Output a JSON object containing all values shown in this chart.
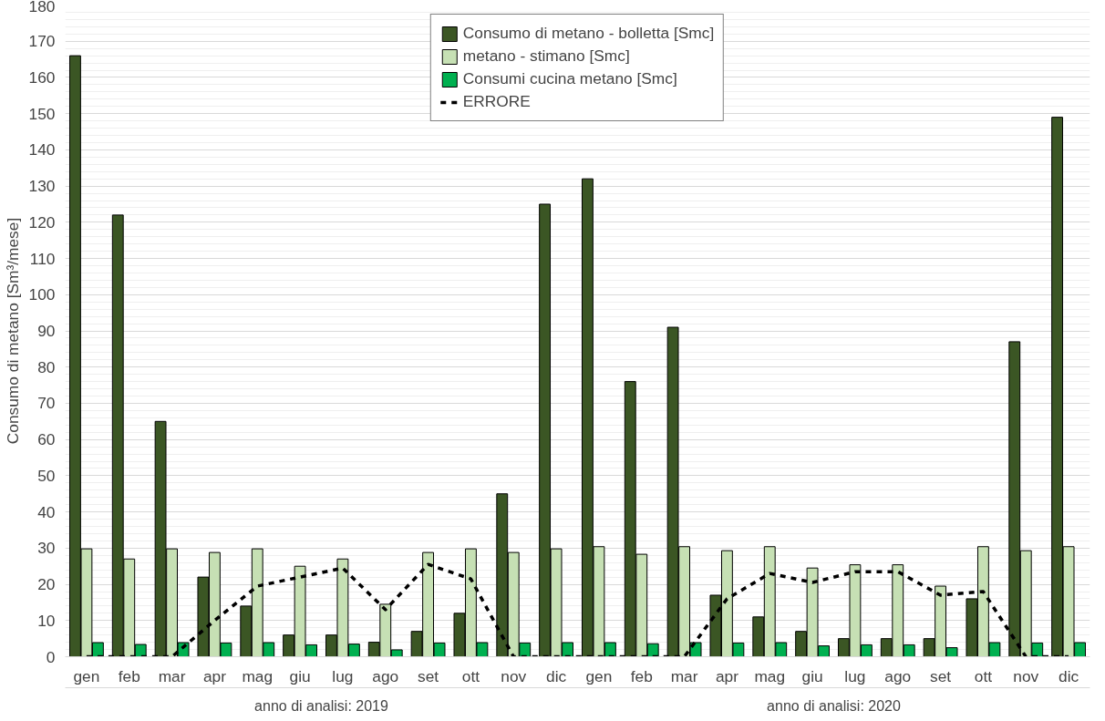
{
  "chart_data": {
    "type": "bar",
    "ylabel": "Consumo di metano [Sm³/mese]",
    "categories": [
      "gen",
      "feb",
      "mar",
      "apr",
      "mag",
      "giu",
      "lug",
      "ago",
      "set",
      "ott",
      "nov",
      "dic",
      "gen",
      "feb",
      "mar",
      "apr",
      "mag",
      "giu",
      "lug",
      "ago",
      "set",
      "ott",
      "nov",
      "dic"
    ],
    "annotations": [
      "anno di analisi: 2019",
      "anno di analisi: 2020"
    ],
    "series": [
      {
        "name": "Consumo di metano - bolletta [Smc]",
        "color": "#3b5624",
        "values": [
          166,
          122,
          65,
          22,
          14,
          6,
          6,
          4,
          7,
          12,
          45,
          125,
          132,
          76,
          91,
          17,
          11,
          7,
          5,
          5,
          5,
          16,
          87,
          149
        ]
      },
      {
        "name": "metano - stimano [Smc]",
        "color": "#c6e0b4",
        "values": [
          29.8,
          27,
          29.8,
          28.8,
          29.8,
          25,
          27,
          14.5,
          28.8,
          29.8,
          28.8,
          29.8,
          30.4,
          28.3,
          30.4,
          29.3,
          30.4,
          24.5,
          25.4,
          25.4,
          19.5,
          30.4,
          29.3,
          30.4
        ]
      },
      {
        "name": "Consumi cucina metano [Smc]",
        "color": "#00b050",
        "values": [
          3.9,
          3.4,
          3.9,
          3.8,
          3.9,
          3.3,
          3.5,
          1.9,
          3.8,
          3.9,
          3.8,
          3.9,
          3.9,
          3.6,
          3.9,
          3.8,
          3.9,
          3.0,
          3.3,
          3.3,
          2.5,
          3.9,
          3.8,
          3.9
        ]
      },
      {
        "name": "ERRORE",
        "type": "line",
        "color": "#000000",
        "line_style": "dashed",
        "values": [
          0,
          0,
          0,
          10,
          19.5,
          22,
          24.5,
          13,
          25.5,
          21.5,
          0,
          0,
          0,
          0,
          0,
          16,
          23,
          20.5,
          23.5,
          23.5,
          17,
          18,
          0,
          0
        ]
      }
    ],
    "ylim": [
      0,
      180
    ],
    "yticks": [
      0,
      10,
      20,
      30,
      40,
      50,
      60,
      70,
      80,
      90,
      100,
      110,
      120,
      130,
      140,
      150,
      160,
      170,
      180
    ],
    "grid": "y",
    "legend": "top"
  }
}
